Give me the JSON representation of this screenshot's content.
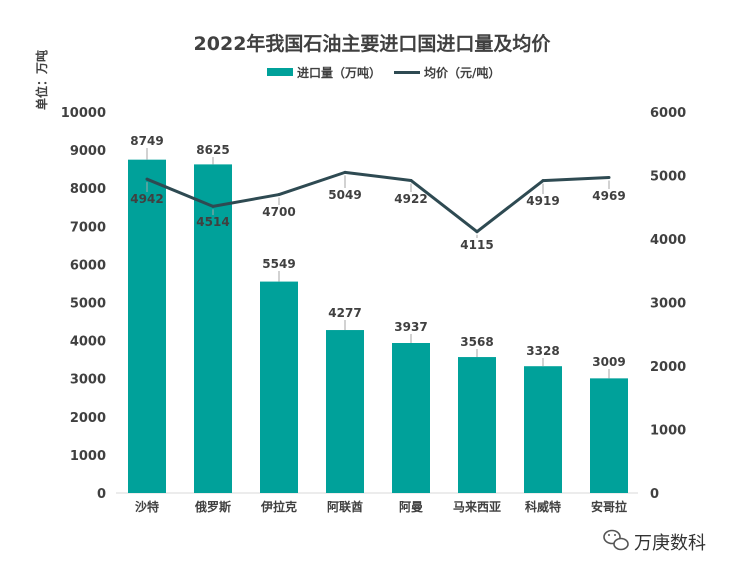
{
  "chart_data": {
    "type": "bar",
    "title": "2022年我国石油主要进口国进口量及均价",
    "unit_label": "单位：万吨",
    "legend": [
      {
        "name": "进口量（万吨）",
        "kind": "bar",
        "color": "#00A19A"
      },
      {
        "name": "均价（元/吨）",
        "kind": "line",
        "color": "#2E4A52"
      }
    ],
    "categories": [
      "沙特",
      "俄罗斯",
      "伊拉克",
      "阿联酋",
      "阿曼",
      "马来西亚",
      "科威特",
      "安哥拉"
    ],
    "series": [
      {
        "name": "进口量（万吨）",
        "type": "bar",
        "axis": "left",
        "values": [
          8749,
          8625,
          5549,
          4277,
          3937,
          3568,
          3328,
          3009
        ]
      },
      {
        "name": "均价（元/吨）",
        "type": "line",
        "axis": "right",
        "values": [
          4942,
          4514,
          4700,
          5049,
          4922,
          4115,
          4919,
          4969
        ]
      }
    ],
    "y_left": {
      "min": 0,
      "max": 10000,
      "step": 1000
    },
    "y_right": {
      "min": 0,
      "max": 6000,
      "step": 1000
    },
    "grid": false,
    "legend_position": "top-center"
  },
  "watermark": {
    "text": "万庚数科",
    "icon": "wechat-icon"
  }
}
